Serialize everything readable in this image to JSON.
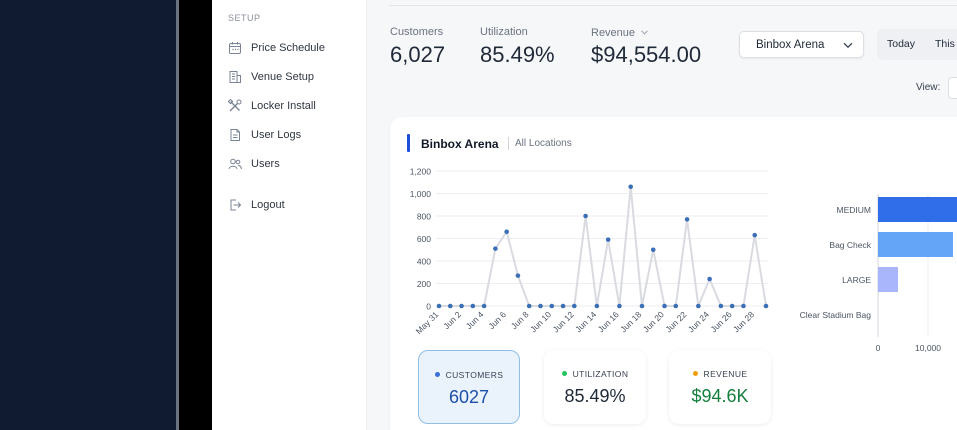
{
  "sidebar": {
    "heading": "SETUP",
    "items": [
      {
        "label": "Price Schedule",
        "icon": "calendar-icon"
      },
      {
        "label": "Venue Setup",
        "icon": "building-icon"
      },
      {
        "label": "Locker Install",
        "icon": "tools-icon"
      },
      {
        "label": "User Logs",
        "icon": "document-icon"
      },
      {
        "label": "Users",
        "icon": "users-icon"
      },
      {
        "label": "Logout",
        "icon": "logout-icon"
      }
    ]
  },
  "stats": {
    "customers": {
      "label": "Customers",
      "value": "6,027"
    },
    "utilization": {
      "label": "Utilization",
      "value": "85.49%"
    },
    "revenue": {
      "label": "Revenue",
      "value": "$94,554.00"
    }
  },
  "venue_select": {
    "value": "Binbox Arena"
  },
  "range": {
    "today": "Today",
    "this": "This"
  },
  "view": {
    "label": "View:"
  },
  "card": {
    "title": "Binbox Arena",
    "subtitle": "All Locations"
  },
  "tiles": [
    {
      "label": "CUSTOMERS",
      "value": "6027",
      "dot_color": "#3b6fd6",
      "value_color": "#1e4fa8"
    },
    {
      "label": "UTILIZATION",
      "value": "85.49%",
      "dot_color": "#22c55e",
      "value_color": "#1f2937"
    },
    {
      "label": "REVENUE",
      "value": "$94.6K",
      "dot_color": "#f59e0b",
      "value_color": "#15803d"
    }
  ],
  "colors": {
    "accent": "#1d4ed8",
    "line_grey": "#d9dbe0",
    "point_blue": "#3b6fb6"
  },
  "chart_data": [
    {
      "type": "line",
      "x": [
        "May 31",
        "Jun 1",
        "Jun 2",
        "Jun 3",
        "Jun 4",
        "Jun 5",
        "Jun 6",
        "Jun 7",
        "Jun 8",
        "Jun 9",
        "Jun 10",
        "Jun 11",
        "Jun 12",
        "Jun 13",
        "Jun 14",
        "Jun 15",
        "Jun 16",
        "Jun 17",
        "Jun 18",
        "Jun 19",
        "Jun 20",
        "Jun 21",
        "Jun 22",
        "Jun 23",
        "Jun 24",
        "Jun 25",
        "Jun 26",
        "Jun 27",
        "Jun 28",
        "Jun 29"
      ],
      "x_tick_labels": [
        "May 31",
        "Jun 2",
        "Jun 4",
        "Jun 6",
        "Jun 8",
        "Jun 10",
        "Jun 12",
        "Jun 14",
        "Jun 16",
        "Jun 18",
        "Jun 20",
        "Jun 22",
        "Jun 24",
        "Jun 26",
        "Jun 28"
      ],
      "series": [
        {
          "values": [
            0,
            0,
            0,
            0,
            0,
            510,
            660,
            270,
            0,
            0,
            0,
            0,
            0,
            800,
            0,
            590,
            0,
            1060,
            0,
            500,
            0,
            0,
            770,
            0,
            240,
            0,
            0,
            0,
            630,
            0
          ]
        }
      ],
      "ylim": [
        0,
        1200
      ],
      "yticks": [
        "0",
        "200",
        "400",
        "600",
        "800",
        "1,000",
        "1,200"
      ],
      "grid": true
    },
    {
      "type": "bar",
      "orientation": "horizontal",
      "categories": [
        "MEDIUM",
        "Bag Check",
        "LARGE",
        "Clear Stadium Bag"
      ],
      "values": [
        16000,
        15000,
        4000,
        0
      ],
      "colors": [
        "#2f6ee8",
        "#64a5f7",
        "#a9b6fb",
        "#c7d2fe"
      ],
      "xticks": [
        "0",
        "10,000"
      ],
      "xlim": [
        0,
        16000
      ]
    }
  ]
}
